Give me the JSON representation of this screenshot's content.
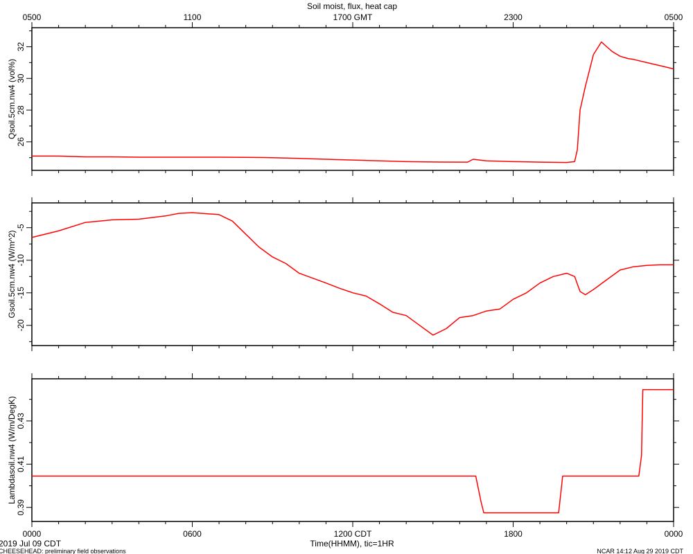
{
  "title": "Soil moist, flux, heat cap",
  "top_axis": {
    "unit": "GMT",
    "tick_labels": [
      {
        "t": 0,
        "label": "0500"
      },
      {
        "t": 6,
        "label": "1100"
      },
      {
        "t": 12,
        "label": "1700 GMT"
      },
      {
        "t": 18,
        "label": "2300"
      },
      {
        "t": 24,
        "label": "0500"
      }
    ]
  },
  "bottom_axis": {
    "xlabel": "Time(HHMM), tic=1HR",
    "tick_labels": [
      {
        "t": 0,
        "label": "0000"
      },
      {
        "t": 6,
        "label": "0600"
      },
      {
        "t": 12,
        "label": "1200 CDT"
      },
      {
        "t": 18,
        "label": "1800"
      },
      {
        "t": 24,
        "label": "0000"
      }
    ]
  },
  "footer": {
    "date": "2019 Jul 09 CDT",
    "project": "CHEESEHEAD: preliminary field observations",
    "stamp": "NCAR 14:12 Aug 29 2019 CDT"
  },
  "colors": {
    "line": "#ff0000",
    "axes": "#000000"
  },
  "chart_data": [
    {
      "type": "line",
      "ylabel": "Qsoil.5cm.nw4 (vol%)",
      "ylim": [
        24.2,
        33.2
      ],
      "yticks": [
        26,
        28,
        30,
        32
      ],
      "series": [
        {
          "x": [
            0,
            1,
            2,
            3,
            4,
            5,
            6,
            7,
            8,
            9,
            10,
            11,
            12,
            13,
            14,
            15,
            16,
            16.3,
            16.5,
            17,
            18,
            19,
            20,
            20.3,
            20.4,
            20.5,
            20.7,
            21,
            21.3,
            21.5,
            21.7,
            22,
            22.3,
            22.5,
            23,
            23.5,
            24
          ],
          "y": [
            25.1,
            25.1,
            25.05,
            25.05,
            25.03,
            25.03,
            25.03,
            25.03,
            25.02,
            25.0,
            24.95,
            24.9,
            24.85,
            24.8,
            24.75,
            24.73,
            24.72,
            24.72,
            24.9,
            24.8,
            24.75,
            24.72,
            24.7,
            24.75,
            25.5,
            28.0,
            29.5,
            31.5,
            32.3,
            32.0,
            31.7,
            31.4,
            31.25,
            31.2,
            31.0,
            30.8,
            30.6
          ]
        }
      ]
    },
    {
      "type": "line",
      "ylabel": "Gsoil.5cm.nw4 (W/m^2)",
      "ylim": [
        -23.1,
        -1.2
      ],
      "yticks": [
        -5,
        -10,
        -15,
        -20
      ],
      "series": [
        {
          "x": [
            0,
            1,
            2,
            3,
            4,
            5,
            5.5,
            6,
            7,
            7.5,
            8,
            8.5,
            9,
            9.5,
            10,
            11,
            11.5,
            12,
            12.5,
            13,
            13.5,
            14,
            14.5,
            15,
            15.5,
            16,
            16.5,
            17,
            17.5,
            18,
            18.5,
            19,
            19.5,
            20,
            20.3,
            20.5,
            20.7,
            21,
            21.5,
            22,
            22.5,
            23,
            23.5,
            24
          ],
          "y": [
            -6.5,
            -5.5,
            -4.2,
            -3.8,
            -3.7,
            -3.2,
            -2.8,
            -2.7,
            -3.0,
            -4.0,
            -6.0,
            -8.0,
            -9.5,
            -10.5,
            -12.0,
            -13.5,
            -14.3,
            -15.0,
            -15.5,
            -16.7,
            -18.0,
            -18.5,
            -20.0,
            -21.5,
            -20.5,
            -18.8,
            -18.5,
            -17.8,
            -17.5,
            -16.0,
            -15.0,
            -13.5,
            -12.5,
            -12.0,
            -12.5,
            -14.8,
            -15.3,
            -14.5,
            -13.0,
            -11.5,
            -11.0,
            -10.8,
            -10.7,
            -10.7
          ]
        }
      ]
    },
    {
      "type": "line",
      "ylabel": "Lambdasoil.nw4 (W/m/DegK)",
      "ylim": [
        0.3835,
        0.4495
      ],
      "yticks": [
        0.39,
        0.41,
        0.43
      ],
      "series": [
        {
          "x": [
            0,
            7.6,
            7.8,
            10.6,
            10.75,
            13.6,
            13.8,
            16.6,
            16.8,
            16.9,
            19.7,
            19.8,
            19.85,
            22.7,
            22.8,
            22.85,
            24
          ],
          "y": [
            0.4045,
            0.4045,
            0.4045,
            0.4045,
            0.4045,
            0.4045,
            0.4045,
            0.4045,
            0.3925,
            0.3875,
            0.3875,
            0.3985,
            0.4045,
            0.4045,
            0.414,
            0.4445,
            0.4445
          ]
        }
      ]
    }
  ]
}
